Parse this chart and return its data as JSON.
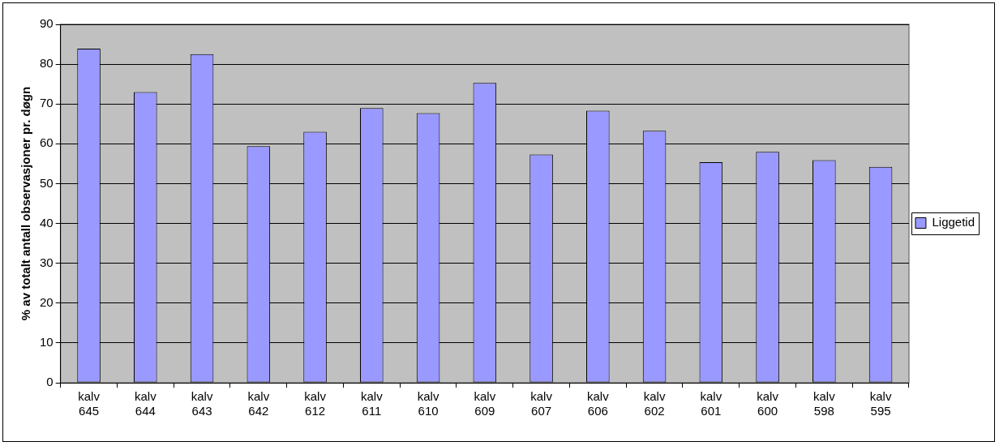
{
  "chart_data": {
    "type": "bar",
    "ylabel": "% av totalt antall observasjoner pr. døgn",
    "categories": [
      "kalv 645",
      "kalv 644",
      "kalv 643",
      "kalv 642",
      "kalv 612",
      "kalv 611",
      "kalv 610",
      "kalv 609",
      "kalv 607",
      "kalv 606",
      "kalv 602",
      "kalv 601",
      "kalv 600",
      "kalv 598",
      "kalv 595"
    ],
    "series": [
      {
        "name": "Liggetid",
        "color": "#9999ff",
        "values": [
          83.9,
          73.0,
          82.5,
          59.4,
          63.0,
          69.0,
          67.7,
          75.3,
          57.3,
          68.3,
          63.3,
          55.4,
          58.0,
          55.9,
          54.2
        ]
      }
    ],
    "ylim": [
      0,
      90
    ],
    "yticks": [
      0,
      10,
      20,
      30,
      40,
      50,
      60,
      70,
      80,
      90
    ],
    "grid": "y",
    "legend": "right"
  }
}
